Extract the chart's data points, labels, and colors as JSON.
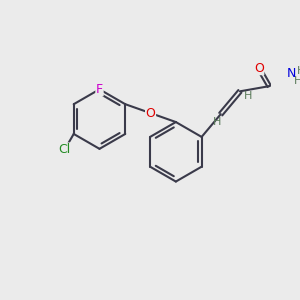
{
  "background_color": "#ebebeb",
  "bond_color": "#3a3a4a",
  "bond_lw": 1.5,
  "atom_colors": {
    "O": "#e00000",
    "N": "#0000dd",
    "Cl": "#228b22",
    "F": "#cc00cc",
    "H": "#5a7a5a",
    "C": "#3a3a4a"
  },
  "font_size": 9,
  "font_size_small": 8
}
